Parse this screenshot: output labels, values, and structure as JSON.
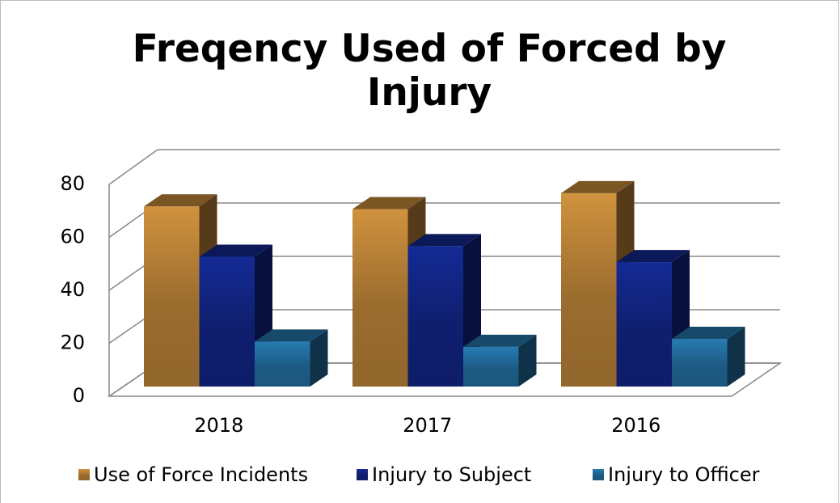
{
  "chart_data": {
    "type": "bar3d",
    "title": "Freqency Used of Forced by Injury",
    "categories": [
      "2018",
      "2017",
      "2016"
    ],
    "series": [
      {
        "name": "Use of Force Incidents",
        "color": "#9a6c2e",
        "values": [
          68,
          67,
          73
        ]
      },
      {
        "name": "Injury to Subject",
        "color": "#0f1f6e",
        "values": [
          49,
          53,
          47
        ]
      },
      {
        "name": "Injury to Officer",
        "color": "#1d5b84",
        "values": [
          17,
          15,
          18
        ]
      }
    ],
    "ylim": [
      0,
      80
    ],
    "yticks": [
      0,
      20,
      40,
      60,
      80
    ],
    "grid": true,
    "legend": "bottom"
  }
}
